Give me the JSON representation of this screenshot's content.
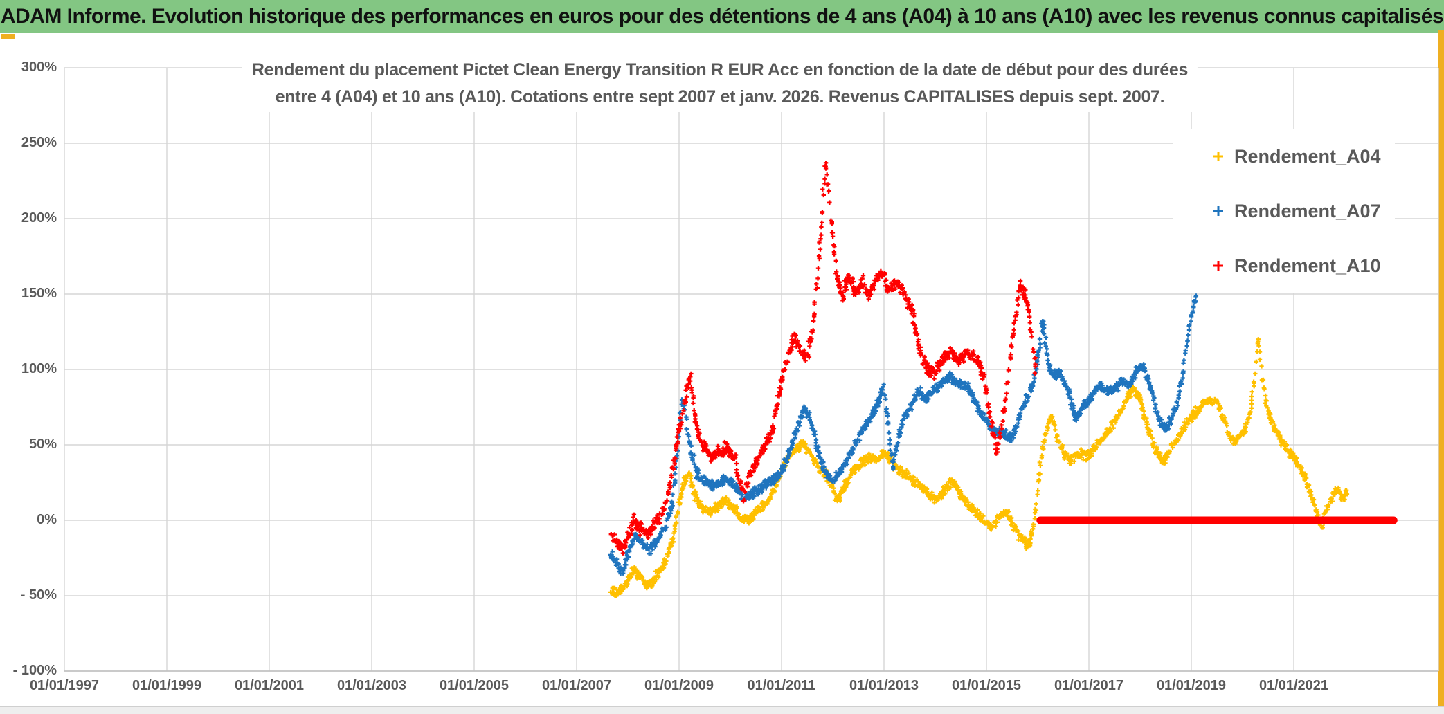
{
  "header": {
    "title": "ADAM Informe. Evolution historique des performances en euros pour des détentions de 4 ans (A04) à 10 ans (A10) avec les revenus connus capitalisés"
  },
  "chart": {
    "title_line1": "Rendement du placement Pictet Clean Energy Transition R EUR Acc en fonction de la date de début pour des durées",
    "title_line2": "entre 4 (A04) et 10 ans (A10). Cotations entre sept 2007 et janv. 2026. Revenus CAPITALISES depuis sept. 2007."
  },
  "colors": {
    "header_bg": "#83C683",
    "accent_gold": "#EFAF21",
    "series_a04": "#FFC000",
    "series_a07": "#1F74BE",
    "series_a10": "#FF0000",
    "text_gray": "#595959",
    "gridline": "#D6D6D6"
  },
  "chart_data": {
    "type": "scatter",
    "title": "Rendement du placement Pictet Clean Energy Transition R EUR Acc en fonction de la date de début pour des durées entre 4 (A04) et 10 ans (A10). Cotations entre sept 2007 et janv. 2026. Revenus CAPITALISES depuis sept. 2007.",
    "grid": true,
    "x_axis": {
      "min_year": 1997,
      "max_year": 2023.83,
      "ticks": [
        {
          "year": 1997,
          "label": "01/01/1997"
        },
        {
          "year": 1999,
          "label": "01/01/1999"
        },
        {
          "year": 2001,
          "label": "01/01/2001"
        },
        {
          "year": 2003,
          "label": "01/01/2003"
        },
        {
          "year": 2005,
          "label": "01/01/2005"
        },
        {
          "year": 2007,
          "label": "01/01/2007"
        },
        {
          "year": 2009,
          "label": "01/01/2009"
        },
        {
          "year": 2011,
          "label": "01/01/2011"
        },
        {
          "year": 2013,
          "label": "01/01/2013"
        },
        {
          "year": 2015,
          "label": "01/01/2015"
        },
        {
          "year": 2017,
          "label": "01/01/2017"
        },
        {
          "year": 2019,
          "label": "01/01/2019"
        },
        {
          "year": 2021,
          "label": "01/01/2021"
        }
      ]
    },
    "y_axis": {
      "unit": "percent",
      "min": -100,
      "max": 300,
      "ticks": [
        {
          "value": 300,
          "label": "300%"
        },
        {
          "value": 250,
          "label": "250%"
        },
        {
          "value": 200,
          "label": "200%"
        },
        {
          "value": 150,
          "label": "150%"
        },
        {
          "value": 100,
          "label": "100%"
        },
        {
          "value": 50,
          "label": "50%"
        },
        {
          "value": 0,
          "label": "0%"
        },
        {
          "value": -50,
          "label": "- 50%"
        },
        {
          "value": -100,
          "label": "- 100%"
        }
      ]
    },
    "legend": {
      "position": "top-right",
      "entries": [
        "Rendement_A04",
        "Rendement_A07",
        "Rendement_A10"
      ]
    },
    "series": [
      {
        "name": "Rendement_A04",
        "color_key": "series_a04",
        "marker": "plus",
        "noise_amplitude_pct": 4.5,
        "anchor_points": [
          [
            2007.67,
            -45
          ],
          [
            2007.78,
            -49
          ],
          [
            2007.88,
            -46
          ],
          [
            2008.0,
            -40
          ],
          [
            2008.12,
            -32
          ],
          [
            2008.25,
            -38
          ],
          [
            2008.38,
            -44
          ],
          [
            2008.5,
            -40
          ],
          [
            2008.62,
            -34
          ],
          [
            2008.75,
            -28
          ],
          [
            2008.88,
            -12
          ],
          [
            2008.98,
            8
          ],
          [
            2009.1,
            26
          ],
          [
            2009.2,
            30
          ],
          [
            2009.32,
            16
          ],
          [
            2009.45,
            8
          ],
          [
            2009.6,
            5
          ],
          [
            2009.75,
            10
          ],
          [
            2009.9,
            14
          ],
          [
            2010.05,
            8
          ],
          [
            2010.2,
            2
          ],
          [
            2010.35,
            0
          ],
          [
            2010.5,
            6
          ],
          [
            2010.65,
            10
          ],
          [
            2010.8,
            16
          ],
          [
            2010.95,
            28
          ],
          [
            2011.1,
            40
          ],
          [
            2011.25,
            46
          ],
          [
            2011.4,
            52
          ],
          [
            2011.55,
            46
          ],
          [
            2011.7,
            36
          ],
          [
            2011.85,
            30
          ],
          [
            2011.95,
            26
          ],
          [
            2012.1,
            13
          ],
          [
            2012.25,
            24
          ],
          [
            2012.4,
            32
          ],
          [
            2012.55,
            38
          ],
          [
            2012.7,
            42
          ],
          [
            2012.85,
            40
          ],
          [
            2013.0,
            45
          ],
          [
            2013.15,
            38
          ],
          [
            2013.3,
            33
          ],
          [
            2013.45,
            30
          ],
          [
            2013.6,
            26
          ],
          [
            2013.75,
            22
          ],
          [
            2013.9,
            16
          ],
          [
            2014.05,
            13
          ],
          [
            2014.2,
            22
          ],
          [
            2014.35,
            25
          ],
          [
            2014.5,
            16
          ],
          [
            2014.65,
            10
          ],
          [
            2014.8,
            5
          ],
          [
            2014.95,
            0
          ],
          [
            2015.1,
            -5
          ],
          [
            2015.25,
            2
          ],
          [
            2015.4,
            6
          ],
          [
            2015.55,
            -6
          ],
          [
            2015.7,
            -13
          ],
          [
            2015.82,
            -17
          ],
          [
            2015.92,
            -5
          ],
          [
            2016.0,
            20
          ],
          [
            2016.08,
            45
          ],
          [
            2016.18,
            62
          ],
          [
            2016.28,
            68
          ],
          [
            2016.38,
            55
          ],
          [
            2016.5,
            44
          ],
          [
            2016.65,
            40
          ],
          [
            2016.8,
            44
          ],
          [
            2016.95,
            42
          ],
          [
            2017.1,
            47
          ],
          [
            2017.25,
            54
          ],
          [
            2017.4,
            60
          ],
          [
            2017.55,
            68
          ],
          [
            2017.7,
            78
          ],
          [
            2017.85,
            88
          ],
          [
            2018.0,
            80
          ],
          [
            2018.15,
            62
          ],
          [
            2018.3,
            46
          ],
          [
            2018.45,
            38
          ],
          [
            2018.6,
            48
          ],
          [
            2018.75,
            56
          ],
          [
            2018.9,
            64
          ],
          [
            2019.05,
            70
          ],
          [
            2019.2,
            76
          ],
          [
            2019.35,
            80
          ],
          [
            2019.5,
            78
          ],
          [
            2019.62,
            68
          ],
          [
            2019.75,
            56
          ],
          [
            2019.85,
            52
          ],
          [
            2019.95,
            56
          ],
          [
            2020.05,
            60
          ],
          [
            2020.15,
            72
          ],
          [
            2020.24,
            95
          ],
          [
            2020.3,
            120
          ],
          [
            2020.38,
            92
          ],
          [
            2020.48,
            76
          ],
          [
            2020.58,
            64
          ],
          [
            2020.7,
            56
          ],
          [
            2020.85,
            48
          ],
          [
            2021.0,
            42
          ],
          [
            2021.15,
            34
          ],
          [
            2021.3,
            20
          ],
          [
            2021.45,
            5
          ],
          [
            2021.55,
            -5
          ],
          [
            2021.65,
            8
          ],
          [
            2021.75,
            16
          ],
          [
            2021.85,
            20
          ],
          [
            2021.95,
            16
          ],
          [
            2022.05,
            18
          ]
        ]
      },
      {
        "name": "Rendement_A07",
        "color_key": "series_a07",
        "marker": "plus",
        "noise_amplitude_pct": 4.5,
        "anchor_points": [
          [
            2007.67,
            -24
          ],
          [
            2007.8,
            -30
          ],
          [
            2007.9,
            -34
          ],
          [
            2008.02,
            -20
          ],
          [
            2008.15,
            -10
          ],
          [
            2008.3,
            -16
          ],
          [
            2008.45,
            -20
          ],
          [
            2008.6,
            -12
          ],
          [
            2008.75,
            -4
          ],
          [
            2008.87,
            12
          ],
          [
            2008.97,
            45
          ],
          [
            2009.05,
            80
          ],
          [
            2009.12,
            72
          ],
          [
            2009.22,
            48
          ],
          [
            2009.35,
            32
          ],
          [
            2009.5,
            26
          ],
          [
            2009.65,
            22
          ],
          [
            2009.8,
            26
          ],
          [
            2009.95,
            28
          ],
          [
            2010.1,
            22
          ],
          [
            2010.25,
            15
          ],
          [
            2010.4,
            16
          ],
          [
            2010.55,
            20
          ],
          [
            2010.7,
            24
          ],
          [
            2010.85,
            28
          ],
          [
            2011.0,
            32
          ],
          [
            2011.15,
            45
          ],
          [
            2011.3,
            60
          ],
          [
            2011.45,
            75
          ],
          [
            2011.55,
            68
          ],
          [
            2011.7,
            48
          ],
          [
            2011.85,
            32
          ],
          [
            2011.97,
            26
          ],
          [
            2012.1,
            30
          ],
          [
            2012.25,
            38
          ],
          [
            2012.4,
            48
          ],
          [
            2012.55,
            58
          ],
          [
            2012.7,
            66
          ],
          [
            2012.85,
            76
          ],
          [
            2013.0,
            90
          ],
          [
            2013.08,
            62
          ],
          [
            2013.17,
            35
          ],
          [
            2013.28,
            55
          ],
          [
            2013.4,
            68
          ],
          [
            2013.55,
            78
          ],
          [
            2013.68,
            85
          ],
          [
            2013.8,
            80
          ],
          [
            2013.95,
            86
          ],
          [
            2014.1,
            90
          ],
          [
            2014.25,
            95
          ],
          [
            2014.4,
            92
          ],
          [
            2014.55,
            90
          ],
          [
            2014.7,
            85
          ],
          [
            2014.85,
            74
          ],
          [
            2015.0,
            66
          ],
          [
            2015.15,
            60
          ],
          [
            2015.3,
            57
          ],
          [
            2015.5,
            55
          ],
          [
            2015.65,
            70
          ],
          [
            2015.8,
            80
          ],
          [
            2015.95,
            95
          ],
          [
            2016.05,
            118
          ],
          [
            2016.1,
            133
          ],
          [
            2016.2,
            105
          ],
          [
            2016.3,
            95
          ],
          [
            2016.45,
            97
          ],
          [
            2016.6,
            85
          ],
          [
            2016.75,
            68
          ],
          [
            2016.9,
            76
          ],
          [
            2017.05,
            82
          ],
          [
            2017.2,
            90
          ],
          [
            2017.35,
            85
          ],
          [
            2017.5,
            88
          ],
          [
            2017.65,
            92
          ],
          [
            2017.8,
            90
          ],
          [
            2017.95,
            100
          ],
          [
            2018.05,
            102
          ],
          [
            2018.2,
            88
          ],
          [
            2018.35,
            68
          ],
          [
            2018.5,
            60
          ],
          [
            2018.62,
            68
          ],
          [
            2018.72,
            78
          ],
          [
            2018.82,
            95
          ],
          [
            2018.92,
            118
          ],
          [
            2019.02,
            140
          ],
          [
            2019.1,
            150
          ]
        ]
      },
      {
        "name": "Rendement_A10",
        "color_key": "series_a10",
        "marker": "plus",
        "noise_amplitude_pct": 6,
        "flat_zero_segment_years": [
          2016.05,
          2022.95
        ],
        "anchor_points": [
          [
            2007.67,
            -10
          ],
          [
            2007.78,
            -15
          ],
          [
            2007.9,
            -20
          ],
          [
            2008.0,
            -10
          ],
          [
            2008.12,
            0
          ],
          [
            2008.25,
            -5
          ],
          [
            2008.38,
            -10
          ],
          [
            2008.5,
            -4
          ],
          [
            2008.62,
            2
          ],
          [
            2008.75,
            12
          ],
          [
            2008.85,
            28
          ],
          [
            2008.95,
            50
          ],
          [
            2009.05,
            68
          ],
          [
            2009.15,
            85
          ],
          [
            2009.22,
            95
          ],
          [
            2009.3,
            70
          ],
          [
            2009.4,
            55
          ],
          [
            2009.5,
            48
          ],
          [
            2009.65,
            42
          ],
          [
            2009.8,
            45
          ],
          [
            2009.95,
            48
          ],
          [
            2010.1,
            40
          ],
          [
            2010.25,
            15
          ],
          [
            2010.4,
            32
          ],
          [
            2010.55,
            42
          ],
          [
            2010.7,
            50
          ],
          [
            2010.82,
            60
          ],
          [
            2010.92,
            78
          ],
          [
            2011.02,
            95
          ],
          [
            2011.12,
            108
          ],
          [
            2011.25,
            122
          ],
          [
            2011.38,
            112
          ],
          [
            2011.5,
            108
          ],
          [
            2011.6,
            125
          ],
          [
            2011.7,
            160
          ],
          [
            2011.78,
            195
          ],
          [
            2011.85,
            238
          ],
          [
            2011.92,
            215
          ],
          [
            2012.0,
            185
          ],
          [
            2012.1,
            158
          ],
          [
            2012.2,
            150
          ],
          [
            2012.32,
            162
          ],
          [
            2012.45,
            150
          ],
          [
            2012.58,
            158
          ],
          [
            2012.7,
            148
          ],
          [
            2012.82,
            158
          ],
          [
            2012.95,
            165
          ],
          [
            2013.1,
            152
          ],
          [
            2013.25,
            158
          ],
          [
            2013.4,
            150
          ],
          [
            2013.55,
            138
          ],
          [
            2013.7,
            112
          ],
          [
            2013.85,
            100
          ],
          [
            2014.0,
            98
          ],
          [
            2014.15,
            106
          ],
          [
            2014.3,
            112
          ],
          [
            2014.45,
            105
          ],
          [
            2014.6,
            112
          ],
          [
            2014.75,
            108
          ],
          [
            2014.9,
            100
          ],
          [
            2015.0,
            85
          ],
          [
            2015.1,
            62
          ],
          [
            2015.2,
            45
          ],
          [
            2015.3,
            62
          ],
          [
            2015.42,
            95
          ],
          [
            2015.55,
            130
          ],
          [
            2015.65,
            155
          ],
          [
            2015.75,
            150
          ],
          [
            2015.83,
            138
          ],
          [
            2015.9,
            120
          ],
          [
            2015.97,
            95
          ]
        ]
      }
    ]
  }
}
